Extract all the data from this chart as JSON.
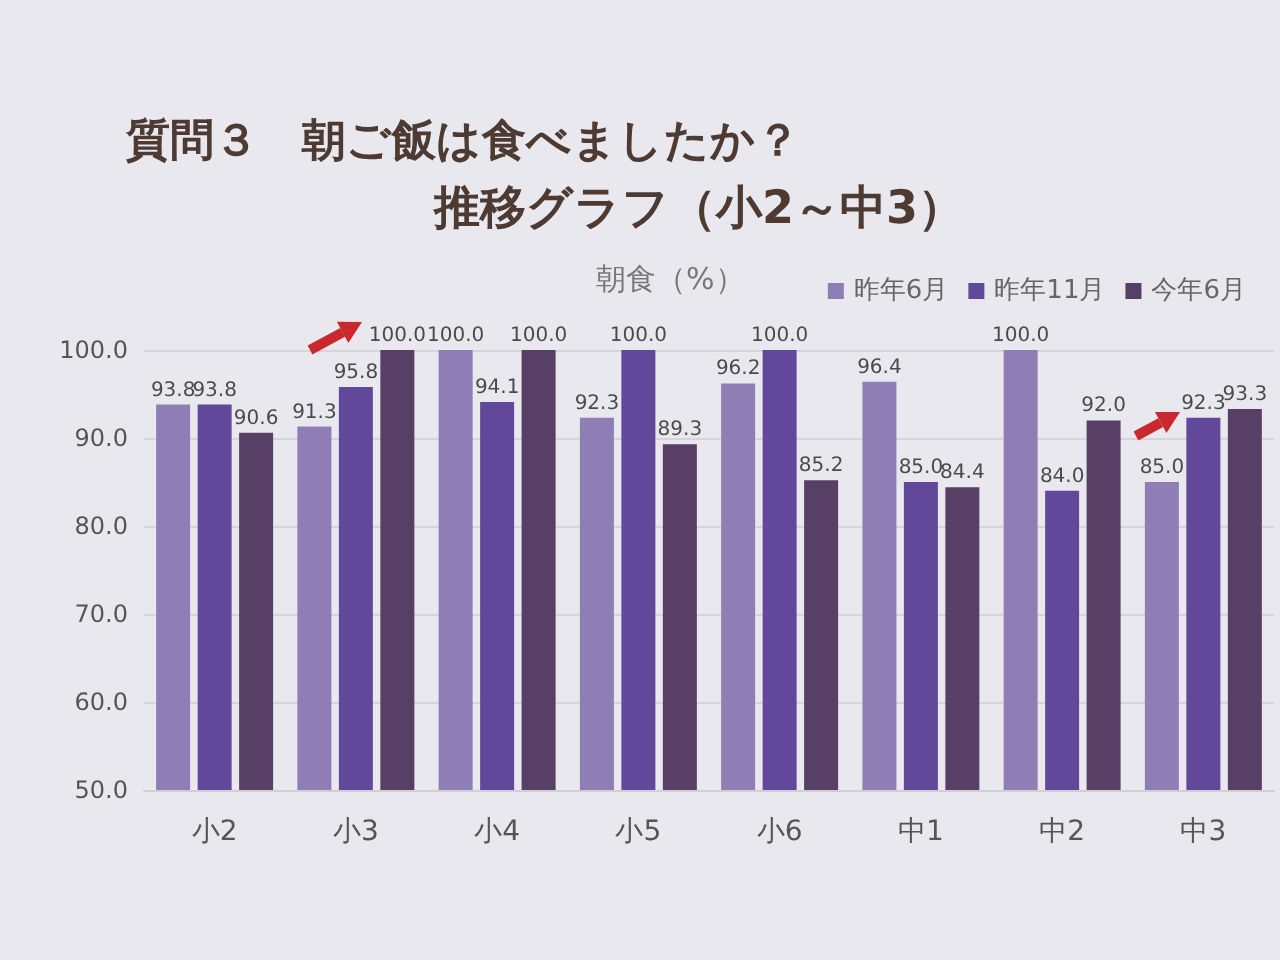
{
  "chart_data": {
    "type": "bar",
    "title": "質問３　朝ご飯は食べましたか？",
    "subtitle": "推移グラフ（小2～中3）",
    "annotations": [
      "朝食（%）"
    ],
    "categories": [
      "小2",
      "小3",
      "小4",
      "小5",
      "小6",
      "中1",
      "中2",
      "中3"
    ],
    "series": [
      {
        "name": "昨年6月",
        "color": "#8f7db5",
        "values": [
          93.8,
          91.3,
          100.0,
          92.3,
          96.2,
          96.4,
          100.0,
          85.0
        ],
        "value_labels": [
          "93.8",
          "91.3",
          "100.0",
          "92.3",
          "96.2",
          "96.4",
          "100.0",
          "85.0"
        ]
      },
      {
        "name": "昨年11月",
        "color": "#62489a",
        "values": [
          93.8,
          95.8,
          94.1,
          100.0,
          100.0,
          85.0,
          84.0,
          92.3
        ],
        "value_labels": [
          "93.8",
          "95.8",
          "94.1",
          "100.0",
          "100.0",
          "85.0",
          "84.0",
          "92.3"
        ]
      },
      {
        "name": "今年6月",
        "color": "#573f65",
        "values": [
          90.6,
          100.0,
          100.0,
          89.3,
          85.2,
          84.4,
          92.0,
          93.3
        ],
        "value_labels": [
          "90.6",
          "100.0",
          "100.0",
          "89.3",
          "85.2",
          "84.4",
          "92.0",
          "93.3"
        ]
      }
    ],
    "ylim": [
      50,
      100
    ],
    "yticks": [
      {
        "value": 50,
        "label": "50.0"
      },
      {
        "value": 60,
        "label": "60.0"
      },
      {
        "value": 70,
        "label": "70.0"
      },
      {
        "value": 80,
        "label": "80.0"
      },
      {
        "value": 90,
        "label": "90.0"
      },
      {
        "value": 100,
        "label": "100.0"
      }
    ],
    "grid": "y",
    "legend": "top right"
  }
}
